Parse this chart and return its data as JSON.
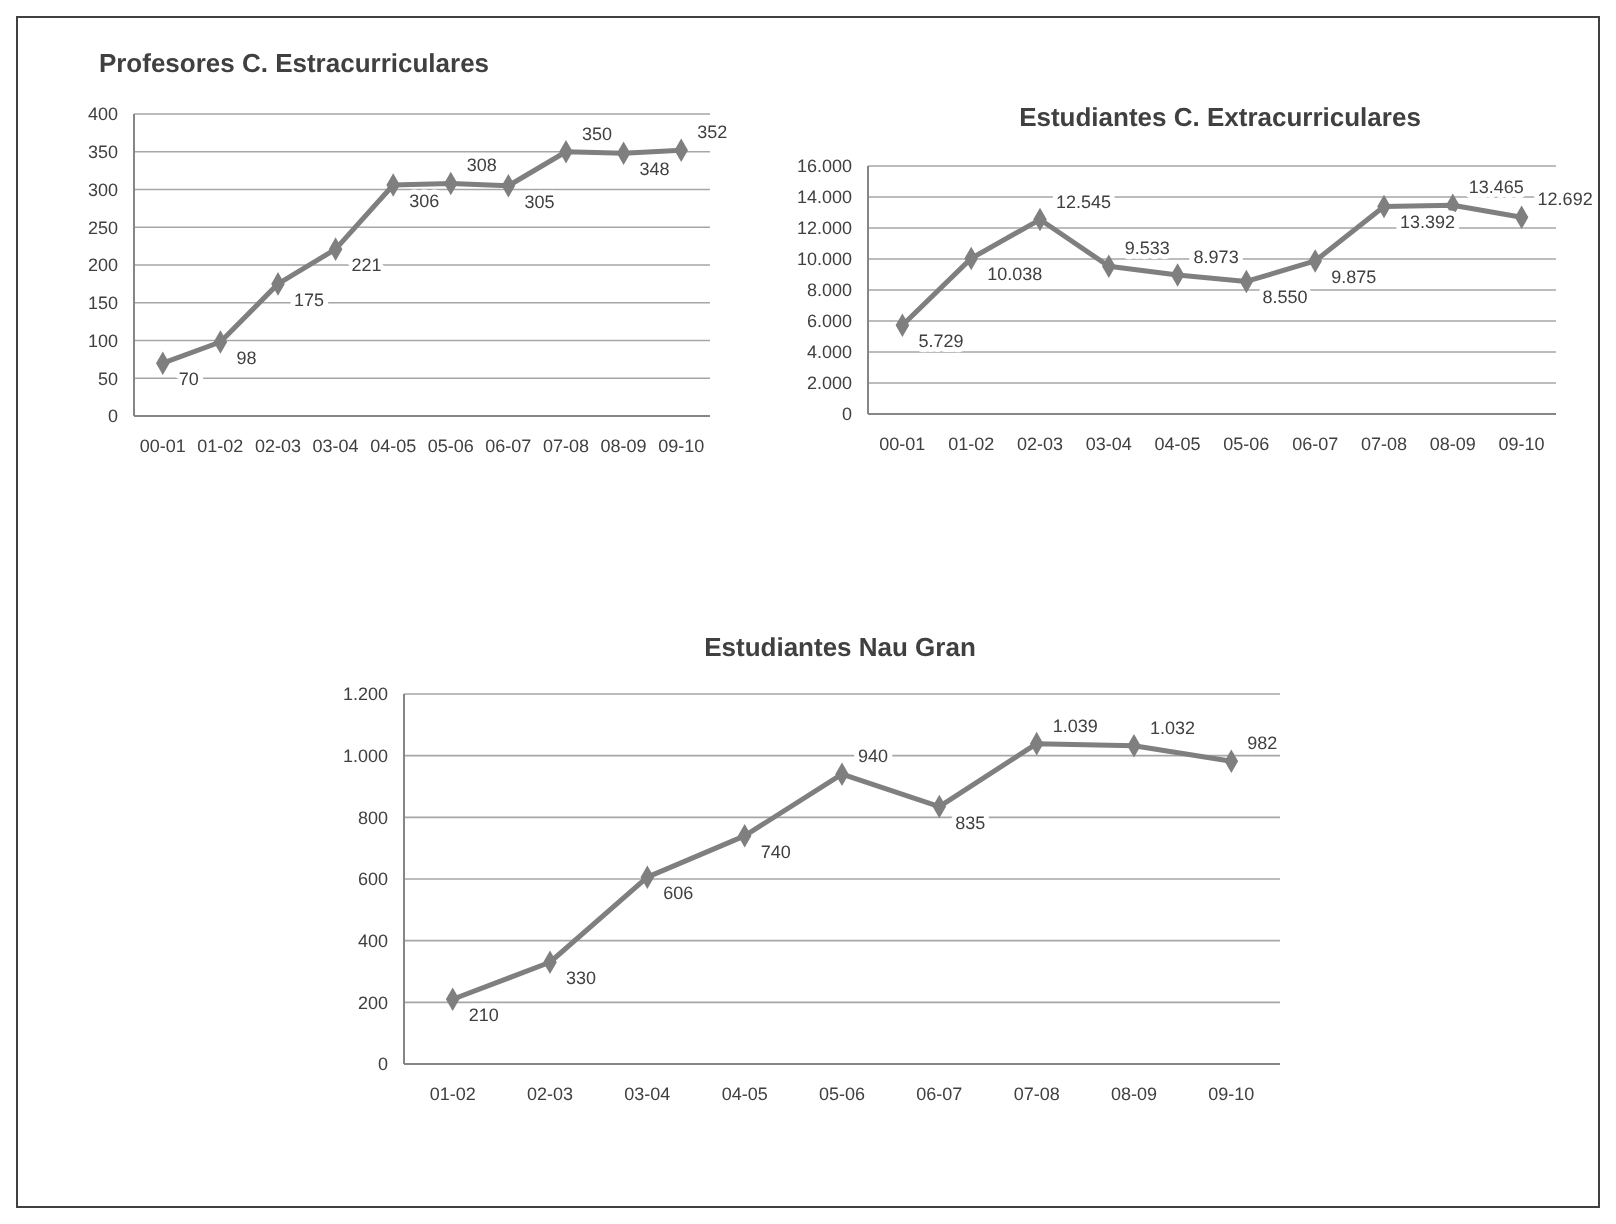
{
  "chart_data": [
    {
      "type": "line",
      "title": "Profesores C. Estracurriculares",
      "categories": [
        "00-01",
        "01-02",
        "02-03",
        "03-04",
        "04-05",
        "05-06",
        "06-07",
        "07-08",
        "08-09",
        "09-10"
      ],
      "series": [
        {
          "color": "#7f7f7f",
          "values": [
            70,
            98,
            175,
            221,
            306,
            308,
            305,
            350,
            348,
            352
          ]
        }
      ],
      "data_labels": true,
      "ylim": [
        0,
        400
      ],
      "yticks": [
        0,
        50,
        100,
        150,
        200,
        250,
        300,
        350,
        400
      ],
      "grid": "y",
      "marker": "diamond",
      "line_style": "solid"
    },
    {
      "type": "line",
      "title": "Estudiantes C. Extracurriculares",
      "categories": [
        "00-01",
        "01-02",
        "02-03",
        "03-04",
        "04-05",
        "05-06",
        "06-07",
        "07-08",
        "08-09",
        "09-10"
      ],
      "series": [
        {
          "color": "#7f7f7f",
          "values": [
            5729,
            10038,
            12545,
            9533,
            8973,
            8550,
            9875,
            13392,
            13465,
            12692
          ],
          "value_labels": [
            "5.729",
            "10.038",
            "12.545",
            "9.533",
            "8.973",
            "8.550",
            "9.875",
            "13.392",
            "13.465",
            "12.692"
          ]
        }
      ],
      "ylim": [
        0,
        16000
      ],
      "yticks": [
        0,
        {
          "value": 2000,
          "label": "2.000"
        },
        {
          "value": 4000,
          "label": "4.000"
        },
        {
          "value": 6000,
          "label": "6.000"
        },
        {
          "value": 8000,
          "label": "8.000"
        },
        {
          "value": 10000,
          "label": "10.000"
        },
        {
          "value": 12000,
          "label": "12.000"
        },
        {
          "value": 14000,
          "label": "14.000"
        },
        {
          "value": 16000,
          "label": "16.000"
        }
      ],
      "grid": "y",
      "marker": "diamond",
      "line_style": "solid"
    },
    {
      "type": "line",
      "title": "Estudiantes Nau Gran",
      "categories": [
        "01-02",
        "02-03",
        "03-04",
        "04-05",
        "05-06",
        "06-07",
        "07-08",
        "08-09",
        "09-10"
      ],
      "series": [
        {
          "color": "#7f7f7f",
          "values": [
            210,
            330,
            606,
            740,
            940,
            835,
            1039,
            1032,
            982
          ],
          "value_labels": [
            "210",
            "330",
            "606",
            "740",
            "940",
            "835",
            "1.039",
            "1.032",
            "982"
          ]
        }
      ],
      "ylim": [
        0,
        1200
      ],
      "yticks": [
        0,
        200,
        400,
        600,
        800,
        {
          "value": 1000,
          "label": "1.000"
        },
        {
          "value": 1200,
          "label": "1.200"
        }
      ],
      "grid": "y",
      "marker": "diamond",
      "line_style": "solid"
    }
  ]
}
